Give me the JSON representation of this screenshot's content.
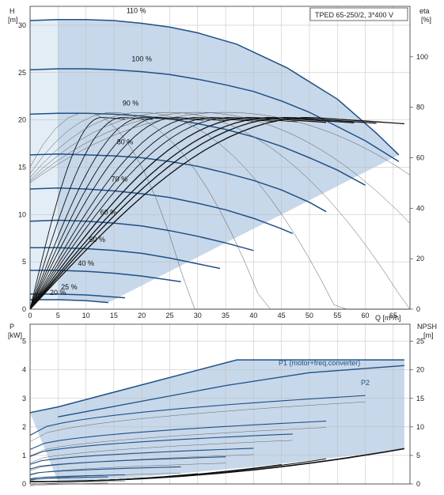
{
  "chart_data": [
    {
      "type": "line",
      "title": "TPED 65-250/2, 3*400 V",
      "ylabel": "H",
      "ylabel_unit": "[m]",
      "y2label": "eta",
      "y2label_unit": "[%]",
      "xlabel": "Q [m³/h]",
      "xlim": [
        0,
        68
      ],
      "ylim": [
        0,
        32
      ],
      "y2lim": [
        0,
        120
      ],
      "x_ticks": [
        "0",
        "5",
        "10",
        "15",
        "20",
        "25",
        "30",
        "35",
        "40",
        "45",
        "50",
        "55",
        "60",
        "65"
      ],
      "y_ticks": [
        "0",
        "5",
        "10",
        "15",
        "20",
        "25",
        "30"
      ],
      "y2_ticks": [
        "0",
        "20",
        "40",
        "60",
        "80",
        "100"
      ],
      "grid": true,
      "series": [
        {
          "name": "110 %",
          "x": [
            0,
            5,
            10,
            15,
            20,
            25,
            30,
            37,
            46,
            55,
            62,
            66
          ],
          "y": [
            30.5,
            30.6,
            30.6,
            30.5,
            30.2,
            29.8,
            29.2,
            28.0,
            25.5,
            22.2,
            18.6,
            16.3
          ]
        },
        {
          "name": "100 %",
          "x": [
            0,
            5,
            10,
            15,
            20,
            25,
            30,
            35,
            40,
            45,
            50,
            55,
            60,
            66
          ],
          "y": [
            25.3,
            25.4,
            25.4,
            25.3,
            25.1,
            24.8,
            24.3,
            23.7,
            23.0,
            22.0,
            20.8,
            19.3,
            17.8,
            15.6
          ]
        },
        {
          "name": "90 %",
          "x": [
            0,
            5,
            10,
            15,
            20,
            25,
            30,
            35,
            40,
            45,
            50,
            55,
            60
          ],
          "y": [
            20.6,
            20.7,
            20.7,
            20.6,
            20.4,
            20.1,
            19.6,
            19.0,
            18.2,
            17.2,
            16.0,
            14.7,
            13.1
          ]
        },
        {
          "name": "80 %",
          "x": [
            0,
            5,
            10,
            15,
            20,
            25,
            30,
            35,
            40,
            45,
            50,
            53
          ],
          "y": [
            16.3,
            16.4,
            16.3,
            16.2,
            16.0,
            15.6,
            15.1,
            14.4,
            13.6,
            12.6,
            11.3,
            10.3
          ]
        },
        {
          "name": "70 %",
          "x": [
            0,
            5,
            10,
            15,
            20,
            25,
            30,
            35,
            40,
            45,
            47
          ],
          "y": [
            12.7,
            12.8,
            12.7,
            12.5,
            12.2,
            11.8,
            11.2,
            10.5,
            9.6,
            8.5,
            8.0
          ]
        },
        {
          "name": "60 %",
          "x": [
            0,
            5,
            10,
            15,
            20,
            25,
            30,
            35,
            40
          ],
          "y": [
            9.3,
            9.4,
            9.3,
            9.1,
            8.8,
            8.3,
            7.7,
            7.0,
            6.2
          ]
        },
        {
          "name": "50 %",
          "x": [
            0,
            5,
            10,
            15,
            20,
            25,
            30,
            34
          ],
          "y": [
            6.5,
            6.5,
            6.4,
            6.2,
            5.9,
            5.4,
            4.8,
            4.3
          ]
        },
        {
          "name": "40 %",
          "x": [
            0,
            5,
            10,
            15,
            20,
            27
          ],
          "y": [
            4.1,
            4.1,
            4.0,
            3.8,
            3.5,
            2.9
          ]
        },
        {
          "name": "25 %",
          "x": [
            0,
            5,
            10,
            17
          ],
          "y": [
            1.6,
            1.6,
            1.5,
            1.2
          ]
        },
        {
          "name": "20 %",
          "x": [
            0,
            5,
            10,
            14
          ],
          "y": [
            1.0,
            1.0,
            0.9,
            0.7
          ]
        }
      ]
    },
    {
      "type": "line",
      "ylabel": "P",
      "ylabel_unit": "[kW]",
      "y2label": "NPSH",
      "y2label_unit": "[m]",
      "xlim": [
        0,
        68
      ],
      "ylim": [
        0,
        5.6
      ],
      "y2lim": [
        0,
        28
      ],
      "y_ticks": [
        "0",
        "1",
        "2",
        "3",
        "4",
        "5"
      ],
      "y2_ticks": [
        "0",
        "5",
        "10",
        "15",
        "20",
        "25"
      ],
      "grid": true,
      "annotations": [
        "P1 (motor+freq.converter)",
        "P2"
      ],
      "series": [
        {
          "name": "P1 (motor+freq.converter)",
          "x": [
            0,
            5,
            37,
            67
          ],
          "y": [
            2.5,
            2.7,
            4.35,
            4.35
          ]
        },
        {
          "name": "P2",
          "x": [
            5,
            20,
            35,
            50,
            67
          ],
          "y": [
            2.35,
            2.9,
            3.45,
            3.9,
            4.15
          ]
        }
      ]
    }
  ]
}
